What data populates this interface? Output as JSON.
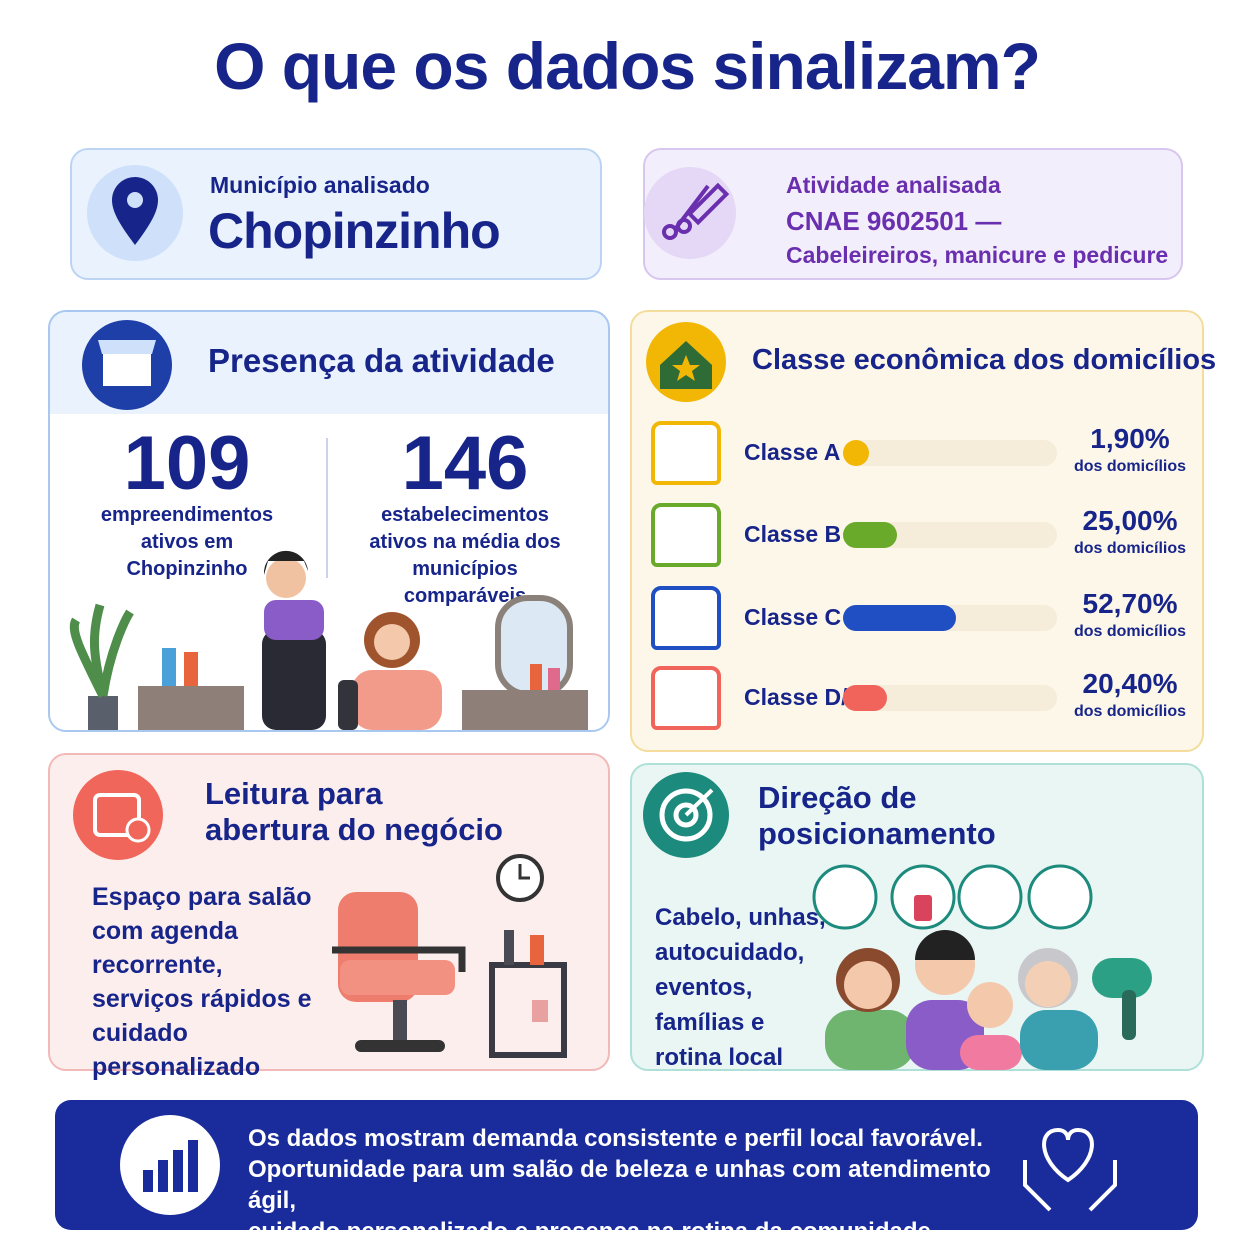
{
  "header": {
    "title": "O que os dados sinalizam?"
  },
  "municipio": {
    "label": "Município analisado",
    "value": "Chopinzinho"
  },
  "atividade": {
    "label": "Atividade analisada",
    "code": "CNAE 9602501 —",
    "description": "Cabeleireiros, manicure e pedicure"
  },
  "presenca": {
    "title": "Presença da atividade",
    "stats": [
      {
        "value": 109,
        "text": "empreendimentos ativos em Chopinzinho"
      },
      {
        "value": 146,
        "text": "estabelecimentos ativos na média dos municípios comparáveis"
      }
    ]
  },
  "classe": {
    "title": "Classe econômica dos domicílios",
    "classes": [
      {
        "name": "Classe A",
        "value": 1.9,
        "value_label": "1,90%",
        "note": "dos domicílios",
        "color": "#f2b705"
      },
      {
        "name": "Classe B",
        "value": 25.0,
        "value_label": "25,00%",
        "note": "dos domicílios",
        "color": "#6aaa2a"
      },
      {
        "name": "Classe C",
        "value": 52.7,
        "value_label": "52,70%",
        "note": "dos domicílios",
        "color": "#1f4fc2"
      },
      {
        "name": "Classe D/E",
        "value": 20.4,
        "value_label": "20,40%",
        "note": "dos domicílios",
        "color": "#f0645c"
      }
    ]
  },
  "leitura": {
    "title": "Leitura para abertura do negócio",
    "text": "Espaço para salão com agenda recorrente, serviços rápidos e cuidado personalizado"
  },
  "direcao": {
    "title": "Direção de posicionamento",
    "text": "Cabelo, unhas, autocuidado, eventos, famílias e rotina local"
  },
  "footer": {
    "lines": [
      "Os dados mostram demanda consistente e perfil local favorável.",
      "Oportunidade para um salão de beleza e unhas com atendimento ágil,",
      "cuidado personalizado e presença na rotina da comunidade."
    ]
  }
}
